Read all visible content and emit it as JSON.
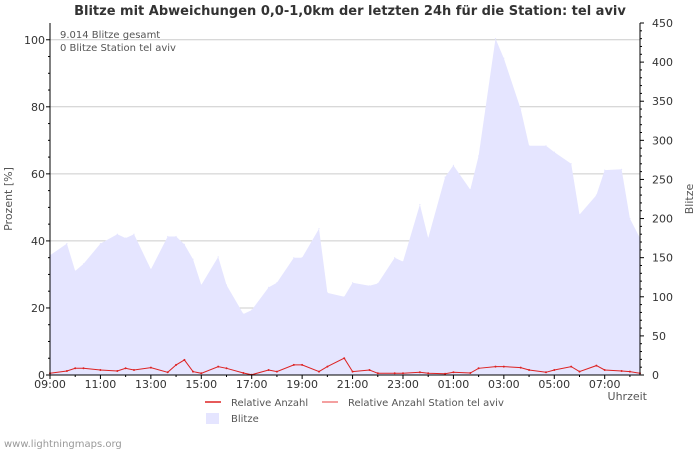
{
  "chart_data": {
    "type": "area",
    "title": "Blitze mit Abweichungen 0,0-1,0km der letzten 24h für die Station: tel aviv",
    "xlabel": "Uhrzeit",
    "ylabel_left": "Prozent   [%]",
    "ylabel_right": "Blitze",
    "ylim_left": [
      0,
      105
    ],
    "ylim_right": [
      0,
      450
    ],
    "left_ticks": [
      "0",
      "20",
      "40",
      "60",
      "80",
      "100"
    ],
    "right_ticks": [
      "0",
      "50",
      "100",
      "150",
      "200",
      "250",
      "300",
      "350",
      "400",
      "450"
    ],
    "x_ticks": [
      "09:00",
      "11:00",
      "13:00",
      "15:00",
      "17:00",
      "19:00",
      "21:00",
      "23:00",
      "01:00",
      "03:00",
      "05:00",
      "07:00"
    ],
    "annotations": [
      "9.014 Blitze gesamt",
      "0 Blitze Station tel aviv"
    ],
    "x_range": [
      0,
      23.4
    ],
    "series": [
      {
        "name": "Blitze",
        "axis": "right",
        "color": "#e5e5ff",
        "x": [
          0,
          0.67,
          1,
          1.33,
          2,
          2.67,
          3,
          3.33,
          4,
          4.67,
          5,
          5.33,
          5.67,
          6,
          6.67,
          7,
          7.67,
          8,
          8.67,
          9,
          9.67,
          10,
          10.67,
          11,
          11.67,
          12,
          12.67,
          13,
          13.67,
          14,
          14.67,
          15,
          15.67,
          16,
          16.67,
          17,
          17.67,
          18,
          18.67,
          19,
          19.67,
          20,
          20.67,
          21,
          21.67,
          22,
          22.67,
          23,
          23.4
        ],
        "values": [
          153,
          168,
          133,
          142,
          168,
          180,
          175,
          180,
          135,
          177,
          177,
          167,
          148,
          115,
          151,
          115,
          78,
          83,
          112,
          118,
          150,
          150,
          187,
          105,
          100,
          118,
          114,
          117,
          150,
          145,
          218,
          175,
          253,
          268,
          237,
          280,
          430,
          405,
          340,
          293,
          293,
          285,
          270,
          205,
          230,
          262,
          263,
          200,
          175
        ]
      },
      {
        "name": "Relative Anzahl",
        "axis": "left",
        "color": "#dd2222",
        "x": [
          0,
          0.67,
          1,
          1.33,
          2,
          2.67,
          3,
          3.33,
          4,
          4.67,
          5,
          5.33,
          5.67,
          6,
          6.67,
          7,
          7.67,
          8,
          8.67,
          9,
          9.67,
          10,
          10.67,
          11,
          11.67,
          12,
          12.67,
          13,
          13.67,
          14,
          14.67,
          15,
          15.67,
          16,
          16.67,
          17,
          17.67,
          18,
          18.67,
          19,
          19.67,
          20,
          20.67,
          21,
          21.67,
          22,
          22.67,
          23,
          23.4
        ],
        "values": [
          0.5,
          1.2,
          2.0,
          2.0,
          1.5,
          1.2,
          2.0,
          1.5,
          2.2,
          0.8,
          3.0,
          4.5,
          1.0,
          0.5,
          2.5,
          2.0,
          0.6,
          0.1,
          1.5,
          1.0,
          3.0,
          3.0,
          1.0,
          2.5,
          5.0,
          1.0,
          1.5,
          0.5,
          0.5,
          0.5,
          0.8,
          0.5,
          0.4,
          0.8,
          0.6,
          2.0,
          2.5,
          2.5,
          2.2,
          1.5,
          0.8,
          1.5,
          2.5,
          1.0,
          2.8,
          1.5,
          1.2,
          1.0,
          0.5
        ]
      },
      {
        "name": "Relative Anzahl Station tel aviv",
        "axis": "left",
        "color": "#f08080",
        "x": [
          0,
          23.4
        ],
        "values": [
          0,
          0
        ]
      }
    ],
    "legend": [
      {
        "label": "Relative Anzahl",
        "kind": "line",
        "color": "#dd2222"
      },
      {
        "label": "Relative Anzahl Station tel aviv",
        "kind": "line",
        "color": "#f08080"
      },
      {
        "label": "Blitze",
        "kind": "box",
        "color": "#e5e5ff"
      }
    ]
  },
  "footer": {
    "credit": "www.lightningmaps.org"
  }
}
